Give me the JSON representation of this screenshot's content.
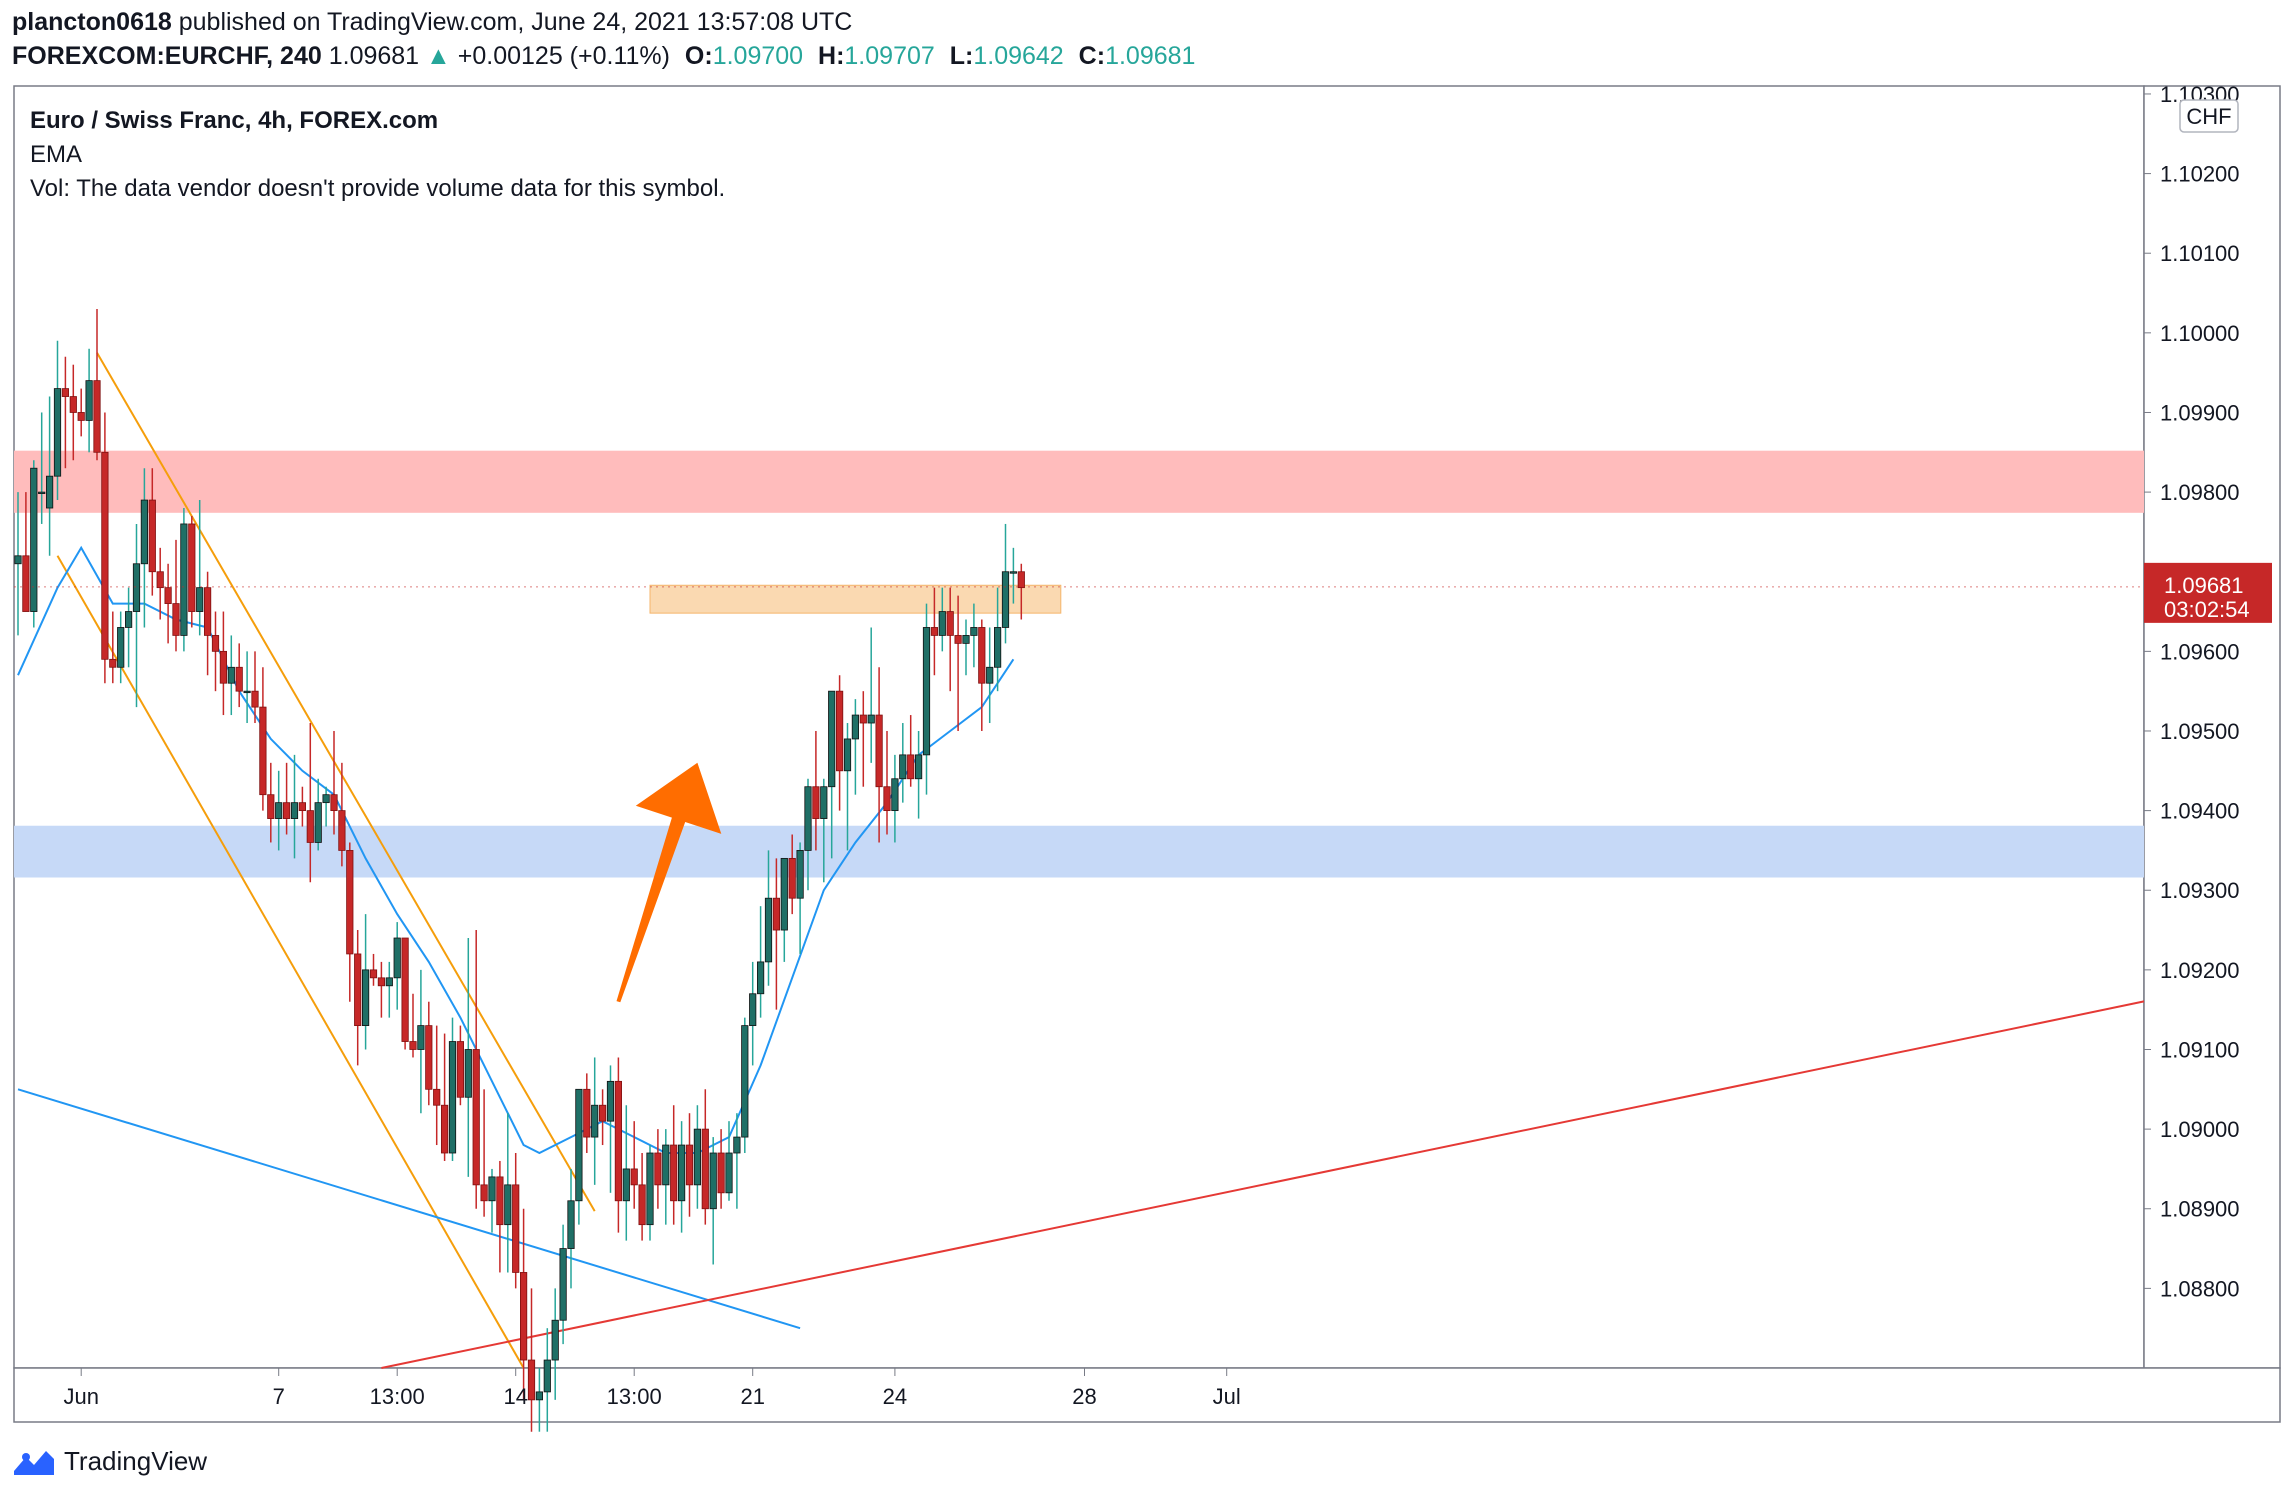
{
  "header": {
    "user": "plancton0618",
    "published_text": " published on TradingView.com, June 24, 2021 13:57:08 UTC",
    "symbol": "FOREXCOM:EURCHF, 240",
    "last": "1.09681",
    "change_arrow": "▲",
    "change": "+0.00125 (+0.11%)",
    "o_label": "O:",
    "o_value": "1.09700",
    "h_label": "H:",
    "h_value": "1.09707",
    "l_label": "L:",
    "l_value": "1.09642",
    "c_label": "C:",
    "c_value": "1.09681"
  },
  "legend": {
    "title": "Euro / Swiss Franc, 4h, FOREX.com",
    "ema": "EMA",
    "vol": "Vol: The data vendor doesn't provide volume data for this symbol."
  },
  "footer": {
    "brand": "TradingView",
    "logo_icon": "tradingview-logo-icon"
  },
  "colors": {
    "up": "#26a69a",
    "up_body": "#1f6f66",
    "down": "#c62828",
    "ema": "#2196f3",
    "resistance_zone": "#ffbcbc",
    "support_zone": "#c6d9f7",
    "small_zone": "#fad9b1",
    "channel": "#f59e0b",
    "trend_blue": "#2196f3",
    "trend_red": "#e53935",
    "arrow": "#ff6d00",
    "price_tag": "#c62828"
  },
  "chart_data": {
    "type": "candlestick",
    "currency": "CHF",
    "y_range": [
      1.087,
      1.1031
    ],
    "y_ticks": [
      "1.10300",
      "1.10200",
      "1.10100",
      "1.10000",
      "1.09900",
      "1.09800",
      "1.09700",
      "1.09600",
      "1.09500",
      "1.09400",
      "1.09300",
      "1.09200",
      "1.09100",
      "1.09000",
      "1.08900",
      "1.08800"
    ],
    "y_tick_values": [
      1.103,
      1.102,
      1.101,
      1.1,
      1.099,
      1.098,
      1.097,
      1.096,
      1.095,
      1.094,
      1.093,
      1.092,
      1.091,
      1.09,
      1.089,
      1.088
    ],
    "x_ticks": [
      {
        "label": "Jun",
        "bar": 8
      },
      {
        "label": "7",
        "bar": 33
      },
      {
        "label": "13:00",
        "bar": 48
      },
      {
        "label": "14",
        "bar": 63
      },
      {
        "label": "13:00",
        "bar": 78
      },
      {
        "label": "21",
        "bar": 93
      },
      {
        "label": "24",
        "bar": 111
      },
      {
        "label": "28",
        "bar": 135
      },
      {
        "label": "Jul",
        "bar": 153
      }
    ],
    "last_price": "1.09681",
    "countdown": "03:02:54",
    "candles": [
      [
        1.0971,
        1.098,
        1.0962,
        1.0972
      ],
      [
        1.0972,
        1.098,
        1.0965,
        1.0965
      ],
      [
        1.0965,
        1.0984,
        1.0963,
        1.0983
      ],
      [
        1.098,
        1.099,
        1.0976,
        1.098
      ],
      [
        1.0978,
        1.0992,
        1.0972,
        1.0982
      ],
      [
        1.0982,
        1.0999,
        1.0979,
        1.0993
      ],
      [
        1.0993,
        1.0997,
        1.0983,
        1.0992
      ],
      [
        1.0992,
        1.0996,
        1.0984,
        1.099
      ],
      [
        1.099,
        1.0993,
        1.0987,
        1.0989
      ],
      [
        1.0989,
        1.0998,
        1.0985,
        1.0994
      ],
      [
        1.0994,
        1.1003,
        1.0984,
        1.0985
      ],
      [
        1.0985,
        1.099,
        1.0956,
        1.0959
      ],
      [
        1.0959,
        1.0965,
        1.0956,
        1.0958
      ],
      [
        1.0958,
        1.0965,
        1.0956,
        1.0963
      ],
      [
        1.0963,
        1.0968,
        1.0958,
        1.0965
      ],
      [
        1.0965,
        1.0976,
        1.0953,
        1.0971
      ],
      [
        1.0971,
        1.0983,
        1.0963,
        1.0979
      ],
      [
        1.0979,
        1.0983,
        1.0967,
        1.097
      ],
      [
        1.097,
        1.0973,
        1.0964,
        1.0968
      ],
      [
        1.0968,
        1.0971,
        1.0961,
        1.0966
      ],
      [
        1.0966,
        1.0974,
        1.096,
        1.0962
      ],
      [
        1.0962,
        1.0978,
        1.096,
        1.0976
      ],
      [
        1.0976,
        1.0977,
        1.0963,
        1.0965
      ],
      [
        1.0965,
        1.0979,
        1.0962,
        1.0968
      ],
      [
        1.0968,
        1.097,
        1.0957,
        1.0962
      ],
      [
        1.0962,
        1.0965,
        1.0955,
        1.096
      ],
      [
        1.096,
        1.0965,
        1.0952,
        1.0956
      ],
      [
        1.0956,
        1.0962,
        1.0952,
        1.0958
      ],
      [
        1.0958,
        1.0961,
        1.0953,
        1.0955
      ],
      [
        1.0955,
        1.096,
        1.0951,
        1.0955
      ],
      [
        1.0955,
        1.096,
        1.0951,
        1.0953
      ],
      [
        1.0953,
        1.0958,
        1.094,
        1.0942
      ],
      [
        1.0942,
        1.0946,
        1.0936,
        1.0939
      ],
      [
        1.0939,
        1.0945,
        1.0935,
        1.0941
      ],
      [
        1.0941,
        1.0946,
        1.0937,
        1.0939
      ],
      [
        1.0939,
        1.0947,
        1.0934,
        1.0941
      ],
      [
        1.0941,
        1.0943,
        1.0938,
        1.094
      ],
      [
        1.094,
        1.0951,
        1.0931,
        1.0936
      ],
      [
        1.0936,
        1.0944,
        1.0935,
        1.0941
      ],
      [
        1.0941,
        1.0943,
        1.0938,
        1.0942
      ],
      [
        1.0942,
        1.095,
        1.0937,
        1.094
      ],
      [
        1.094,
        1.0946,
        1.0933,
        1.0935
      ],
      [
        1.0935,
        1.0936,
        1.0916,
        1.0922
      ],
      [
        1.0922,
        1.0925,
        1.0908,
        1.0913
      ],
      [
        1.0913,
        1.0927,
        1.091,
        1.092
      ],
      [
        1.092,
        1.0922,
        1.0918,
        1.0919
      ],
      [
        1.0919,
        1.0921,
        1.0914,
        1.0918
      ],
      [
        1.0918,
        1.0921,
        1.0914,
        1.0919
      ],
      [
        1.0919,
        1.0926,
        1.0915,
        1.0924
      ],
      [
        1.0924,
        1.0924,
        1.091,
        1.0911
      ],
      [
        1.0911,
        1.0917,
        1.0909,
        1.091
      ],
      [
        1.091,
        1.092,
        1.0902,
        1.0913
      ],
      [
        1.0913,
        1.0916,
        1.0903,
        1.0905
      ],
      [
        1.0905,
        1.0913,
        1.0898,
        1.0903
      ],
      [
        1.0903,
        1.0912,
        1.0896,
        1.0897
      ],
      [
        1.0897,
        1.0914,
        1.0896,
        1.0911
      ],
      [
        1.0911,
        1.0913,
        1.0903,
        1.0904
      ],
      [
        1.0904,
        1.0924,
        1.0894,
        1.091
      ],
      [
        1.091,
        1.0925,
        1.089,
        1.0893
      ],
      [
        1.0893,
        1.0905,
        1.0889,
        1.0891
      ],
      [
        1.0891,
        1.0895,
        1.0887,
        1.0894
      ],
      [
        1.0894,
        1.0896,
        1.0882,
        1.0888
      ],
      [
        1.0888,
        1.0902,
        1.0882,
        1.0893
      ],
      [
        1.0893,
        1.0897,
        1.088,
        1.0882
      ],
      [
        1.0882,
        1.089,
        1.0866,
        1.0871
      ],
      [
        1.0871,
        1.088,
        1.0862,
        1.0866
      ],
      [
        1.0866,
        1.087,
        1.0862,
        1.0867
      ],
      [
        1.0867,
        1.0875,
        1.0862,
        1.0871
      ],
      [
        1.0871,
        1.088,
        1.0866,
        1.0876
      ],
      [
        1.0876,
        1.0888,
        1.0873,
        1.0885
      ],
      [
        1.0885,
        1.0895,
        1.088,
        1.0891
      ],
      [
        1.0891,
        1.0905,
        1.0888,
        1.0905
      ],
      [
        1.0905,
        1.0907,
        1.0897,
        1.0899
      ],
      [
        1.0899,
        1.0909,
        1.0893,
        1.0903
      ],
      [
        1.0903,
        1.0905,
        1.0898,
        1.0901
      ],
      [
        1.0901,
        1.0908,
        1.0892,
        1.0906
      ],
      [
        1.0906,
        1.0909,
        1.0887,
        1.0891
      ],
      [
        1.0891,
        1.0903,
        1.0886,
        1.0895
      ],
      [
        1.0895,
        1.0901,
        1.089,
        1.0893
      ],
      [
        1.0893,
        1.0897,
        1.0886,
        1.0888
      ],
      [
        1.0888,
        1.0898,
        1.0886,
        1.0897
      ],
      [
        1.0897,
        1.09,
        1.089,
        1.0893
      ],
      [
        1.0893,
        1.09,
        1.0888,
        1.0898
      ],
      [
        1.0898,
        1.0903,
        1.0888,
        1.0891
      ],
      [
        1.0891,
        1.0901,
        1.0887,
        1.0898
      ],
      [
        1.0898,
        1.0902,
        1.0889,
        1.0893
      ],
      [
        1.0893,
        1.0903,
        1.089,
        1.09
      ],
      [
        1.09,
        1.0905,
        1.0888,
        1.089
      ],
      [
        1.089,
        1.0899,
        1.0883,
        1.0897
      ],
      [
        1.0897,
        1.09,
        1.089,
        1.0892
      ],
      [
        1.0892,
        1.0901,
        1.0891,
        1.0897
      ],
      [
        1.0897,
        1.0902,
        1.089,
        1.0899
      ],
      [
        1.0899,
        1.0914,
        1.0897,
        1.0913
      ],
      [
        1.0913,
        1.0921,
        1.0908,
        1.0917
      ],
      [
        1.0917,
        1.0928,
        1.0914,
        1.0921
      ],
      [
        1.0921,
        1.0935,
        1.0918,
        1.0929
      ],
      [
        1.0929,
        1.0934,
        1.0915,
        1.0925
      ],
      [
        1.0925,
        1.0934,
        1.0921,
        1.0934
      ],
      [
        1.0934,
        1.0937,
        1.0927,
        1.0929
      ],
      [
        1.0929,
        1.0936,
        1.0922,
        1.0935
      ],
      [
        1.0935,
        1.0944,
        1.093,
        1.0943
      ],
      [
        1.0943,
        1.095,
        1.0935,
        1.0939
      ],
      [
        1.0939,
        1.0944,
        1.0931,
        1.0943
      ],
      [
        1.0943,
        1.0955,
        1.0934,
        1.0955
      ],
      [
        1.0955,
        1.0957,
        1.094,
        1.0945
      ],
      [
        1.0945,
        1.0951,
        1.0935,
        1.0949
      ],
      [
        1.0949,
        1.0954,
        1.0942,
        1.0952
      ],
      [
        1.0952,
        1.0955,
        1.0943,
        1.0951
      ],
      [
        1.0951,
        1.0963,
        1.0946,
        1.0952
      ],
      [
        1.0952,
        1.0958,
        1.0936,
        1.0943
      ],
      [
        1.0943,
        1.095,
        1.0937,
        1.094
      ],
      [
        1.094,
        1.0947,
        1.0936,
        1.0944
      ],
      [
        1.0944,
        1.0951,
        1.0941,
        1.0947
      ],
      [
        1.0947,
        1.0952,
        1.0943,
        1.0944
      ],
      [
        1.0944,
        1.095,
        1.0939,
        1.0947
      ],
      [
        1.0947,
        1.0966,
        1.0942,
        1.0963
      ],
      [
        1.0963,
        1.0968,
        1.0957,
        1.0962
      ],
      [
        1.0962,
        1.0968,
        1.096,
        1.0965
      ],
      [
        1.0965,
        1.0968,
        1.0955,
        1.0962
      ],
      [
        1.0962,
        1.0967,
        1.095,
        1.0961
      ],
      [
        1.0961,
        1.0964,
        1.0957,
        1.0962
      ],
      [
        1.0962,
        1.0966,
        1.0958,
        1.0963
      ],
      [
        1.0963,
        1.0964,
        1.095,
        1.0956
      ],
      [
        1.0956,
        1.0963,
        1.0951,
        1.0958
      ],
      [
        1.0958,
        1.0968,
        1.0955,
        1.0963
      ],
      [
        1.0963,
        1.0976,
        1.0961,
        1.097
      ],
      [
        1.097,
        1.0973,
        1.0966,
        1.097
      ],
      [
        1.097,
        1.0971,
        1.0964,
        1.0968
      ]
    ],
    "ema": [
      [
        0,
        1.0957
      ],
      [
        5,
        1.0968
      ],
      [
        8,
        1.0973
      ],
      [
        12,
        1.0966
      ],
      [
        16,
        1.0966
      ],
      [
        20,
        1.0964
      ],
      [
        24,
        1.0963
      ],
      [
        28,
        1.0955
      ],
      [
        32,
        1.0949
      ],
      [
        36,
        1.0945
      ],
      [
        40,
        1.0942
      ],
      [
        44,
        1.0934
      ],
      [
        48,
        1.0927
      ],
      [
        52,
        1.0921
      ],
      [
        56,
        1.0914
      ],
      [
        60,
        1.0906
      ],
      [
        64,
        1.0898
      ],
      [
        66,
        1.0897
      ],
      [
        70,
        1.0899
      ],
      [
        74,
        1.0901
      ],
      [
        78,
        1.0899
      ],
      [
        82,
        1.0897
      ],
      [
        86,
        1.0897
      ],
      [
        90,
        1.0899
      ],
      [
        94,
        1.0908
      ],
      [
        98,
        1.0919
      ],
      [
        102,
        1.093
      ],
      [
        106,
        1.0936
      ],
      [
        110,
        1.0941
      ],
      [
        114,
        1.0947
      ],
      [
        118,
        1.095
      ],
      [
        122,
        1.0953
      ],
      [
        126,
        1.0959
      ]
    ]
  },
  "annotations": {
    "resistance_zone": [
      1.09774,
      1.09852
    ],
    "support_zone": [
      1.09316,
      1.09381
    ],
    "small_zone": [
      1.09648,
      1.09683
    ],
    "small_zone_bars": [
      80,
      132
    ],
    "channel_upper": [
      [
        10,
        1.09975
      ],
      [
        73,
        1.08897
      ]
    ],
    "channel_lower": [
      [
        5,
        1.0972
      ],
      [
        64,
        1.087
      ]
    ],
    "trend_blue": [
      [
        0,
        1.0905
      ],
      [
        99,
        1.0875
      ]
    ],
    "trend_red": [
      [
        46,
        1.087
      ],
      [
        172,
        1.0896
      ]
    ],
    "arrow": {
      "from": [
        76,
        1.0916
      ],
      "to": [
        86,
        1.0946
      ]
    }
  }
}
